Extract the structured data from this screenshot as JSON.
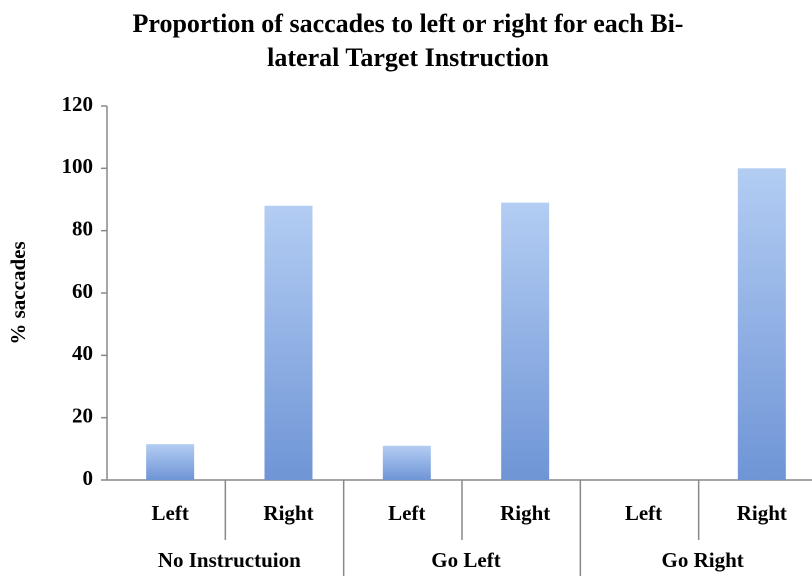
{
  "chart_data": {
    "type": "bar",
    "title": [
      "Proportion of saccades to left or right for each Bi-",
      "lateral Target Instruction"
    ],
    "y_label": "% saccades",
    "categories": [
      "Left",
      "Right",
      "Left",
      "Right",
      "Left",
      "Right"
    ],
    "groups": [
      "No Instructuion",
      "Go Left",
      "Go Right"
    ],
    "values": [
      11.5,
      88,
      11,
      89,
      0,
      100
    ],
    "color": "#7ea3dc",
    "ylim": [
      0,
      120
    ],
    "yticks": [
      0,
      20,
      40,
      60,
      80,
      100,
      120
    ],
    "grid": false
  }
}
